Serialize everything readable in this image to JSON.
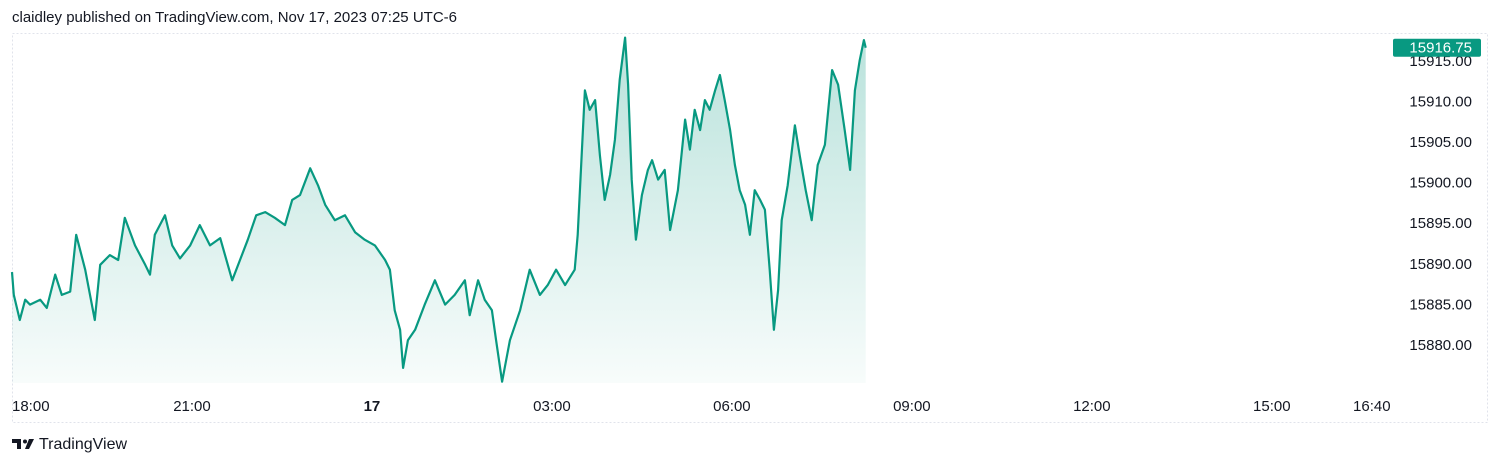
{
  "chart_data": {
    "type": "area",
    "title": "claidley published on TradingView.com, Nov 17, 2023 07:25 UTC-6",
    "source": "TradingView",
    "color": "#089981",
    "grid": false,
    "x": [
      18.0,
      18.03,
      18.13,
      18.22,
      18.3,
      18.47,
      18.58,
      18.72,
      18.83,
      18.97,
      19.07,
      19.22,
      19.38,
      19.47,
      19.63,
      19.77,
      19.88,
      20.05,
      20.22,
      20.3,
      20.38,
      20.55,
      20.67,
      20.8,
      20.97,
      21.13,
      21.3,
      21.47,
      21.67,
      21.8,
      21.93,
      22.07,
      22.22,
      22.38,
      22.55,
      22.67,
      22.8,
      22.97,
      23.1,
      23.22,
      23.38,
      23.55,
      23.72,
      23.88,
      24.05,
      24.22,
      24.3,
      24.38,
      24.47,
      24.52,
      24.6,
      24.72,
      24.88,
      25.05,
      25.22,
      25.38,
      25.55,
      25.63,
      25.77,
      25.88,
      26.0,
      26.07,
      26.17,
      26.3,
      26.47,
      26.63,
      26.8,
      26.93,
      27.07,
      27.22,
      27.38,
      27.43,
      27.55,
      27.63,
      27.72,
      27.8,
      27.88,
      27.97,
      28.05,
      28.13,
      28.22,
      28.27,
      28.33,
      28.4,
      28.5,
      28.6,
      28.67,
      28.77,
      28.88,
      28.97,
      29.1,
      29.22,
      29.3,
      29.38,
      29.47,
      29.55,
      29.63,
      29.72,
      29.8,
      29.88,
      29.97,
      30.05,
      30.13,
      30.22,
      30.3,
      30.38,
      30.47,
      30.55,
      30.63,
      30.7,
      30.77,
      30.83,
      30.93,
      31.05,
      31.13,
      31.23,
      31.33,
      31.43,
      31.55,
      31.67,
      31.77,
      31.88,
      31.97,
      32.05,
      32.13,
      32.2,
      32.23
    ],
    "values": [
      15889.1,
      15886.3,
      15883.2,
      15885.7,
      15885.1,
      15885.7,
      15884.7,
      15888.8,
      15886.3,
      15886.7,
      15893.7,
      15889.4,
      15883.2,
      15890.0,
      15891.2,
      15890.6,
      15895.8,
      15892.4,
      15890.0,
      15888.8,
      15893.7,
      15896.1,
      15892.4,
      15890.8,
      15892.4,
      15894.9,
      15892.4,
      15893.3,
      15888.1,
      15890.6,
      15893.1,
      15896.1,
      15896.5,
      15895.8,
      15894.9,
      15898.0,
      15898.6,
      15901.9,
      15899.8,
      15897.4,
      15895.5,
      15896.1,
      15894.0,
      15893.1,
      15892.4,
      15890.6,
      15889.4,
      15884.4,
      15882.0,
      15877.3,
      15880.7,
      15882.0,
      15885.1,
      15888.1,
      15885.1,
      15886.3,
      15888.1,
      15883.8,
      15888.1,
      15885.7,
      15884.4,
      15880.7,
      15875.6,
      15880.7,
      15884.4,
      15889.4,
      15886.3,
      15887.5,
      15889.4,
      15887.5,
      15889.4,
      15893.7,
      15911.5,
      15909.1,
      15910.3,
      15903.5,
      15898.0,
      15901.1,
      15905.4,
      15912.8,
      15918.0,
      15912.2,
      15900.5,
      15893.1,
      15898.6,
      15901.7,
      15902.9,
      15900.5,
      15901.7,
      15894.3,
      15899.2,
      15907.9,
      15904.2,
      15909.1,
      15906.6,
      15910.3,
      15909.1,
      15911.5,
      15913.4,
      15910.3,
      15906.6,
      15902.3,
      15899.2,
      15897.4,
      15893.7,
      15899.2,
      15898.0,
      15896.8,
      15889.4,
      15882.0,
      15886.9,
      15895.5,
      15899.8,
      15907.2,
      15903.5,
      15899.2,
      15895.5,
      15902.3,
      15904.8,
      15914.0,
      15912.2,
      15906.6,
      15901.7,
      15911.5,
      15915.2,
      15917.7,
      15916.75
    ],
    "last_price": {
      "value": 15916.75,
      "label": "15916.75"
    },
    "xlim": [
      18,
      40.97
    ],
    "ylim": [
      15875.44,
      15918.57
    ],
    "xticks": [
      {
        "value": 18,
        "label": "18:00"
      },
      {
        "value": 21,
        "label": "21:00"
      },
      {
        "value": 24,
        "label": "17"
      },
      {
        "value": 27,
        "label": "03:00"
      },
      {
        "value": 30,
        "label": "06:00"
      },
      {
        "value": 33,
        "label": "09:00"
      },
      {
        "value": 36,
        "label": "12:00"
      },
      {
        "value": 39,
        "label": "15:00"
      },
      {
        "value": 40.667,
        "label": "16:40"
      }
    ],
    "yticks": [
      {
        "value": 15880,
        "label": "15880.00"
      },
      {
        "value": 15885,
        "label": "15885.00"
      },
      {
        "value": 15890,
        "label": "15890.00"
      },
      {
        "value": 15895,
        "label": "15895.00"
      },
      {
        "value": 15900,
        "label": "15900.00"
      },
      {
        "value": 15905,
        "label": "15905.00"
      },
      {
        "value": 15910,
        "label": "15910.00"
      },
      {
        "value": 15915,
        "label": "15915.00"
      }
    ]
  }
}
